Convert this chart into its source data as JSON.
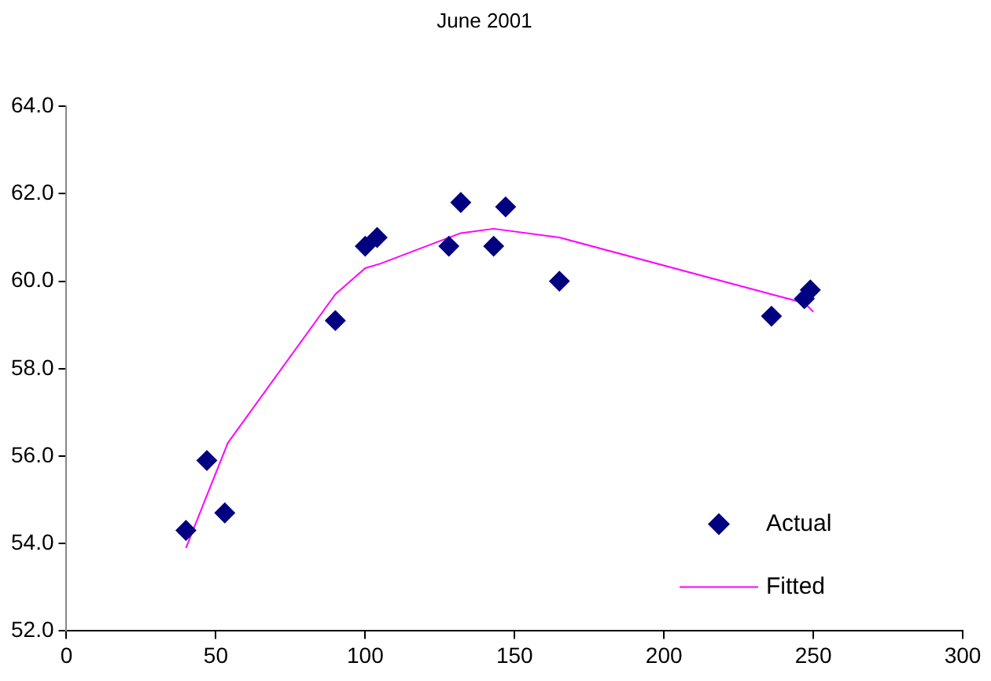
{
  "chart_data": {
    "type": "scatter",
    "title": "June 2001",
    "xlim": [
      0,
      300
    ],
    "xticks": [
      0,
      50,
      100,
      150,
      200,
      250,
      300
    ],
    "ylim": [
      52,
      64
    ],
    "yticks": [
      {
        "value": 52,
        "label": "52.0"
      },
      {
        "value": 54,
        "label": "54.0"
      },
      {
        "value": 56,
        "label": "56.0"
      },
      {
        "value": 58,
        "label": "58.0"
      },
      {
        "value": 60,
        "label": "60.0"
      },
      {
        "value": 62,
        "label": "62.0"
      },
      {
        "value": 64,
        "label": "64.0"
      }
    ],
    "grid": false,
    "legend": "bottom right",
    "series": [
      {
        "name": "Actual",
        "type": "scatter",
        "marker": "diamond",
        "color": "#000080",
        "x": [
          40,
          47,
          53,
          90,
          100,
          104,
          128,
          132,
          143,
          147,
          165,
          236,
          247,
          249
        ],
        "values": [
          54.3,
          55.9,
          54.7,
          59.1,
          60.8,
          61.0,
          60.8,
          61.8,
          60.8,
          61.7,
          60.0,
          59.2,
          59.6,
          59.8
        ]
      },
      {
        "name": "Fitted",
        "type": "line",
        "marker": "none",
        "color": "#ff00ff",
        "x": [
          40,
          47,
          54,
          90,
          100,
          105,
          132,
          143,
          165,
          236,
          247,
          250
        ],
        "values": [
          53.9,
          55.1,
          56.3,
          59.7,
          60.3,
          60.4,
          61.1,
          61.2,
          61.0,
          59.7,
          59.5,
          59.3
        ]
      }
    ]
  }
}
